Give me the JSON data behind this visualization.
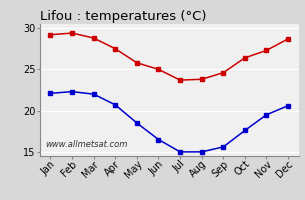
{
  "title": "Lifou : temperatures (°C)",
  "months": [
    "Jan",
    "Feb",
    "Mar",
    "Apr",
    "May",
    "Jun",
    "Jul",
    "Aug",
    "Sep",
    "Oct",
    "Nov",
    "Dec"
  ],
  "max_temps": [
    29.2,
    29.4,
    28.8,
    27.5,
    25.8,
    25.0,
    23.7,
    23.8,
    24.6,
    26.4,
    27.3,
    28.7
  ],
  "min_temps": [
    22.1,
    22.3,
    22.0,
    20.7,
    18.5,
    16.5,
    15.0,
    15.0,
    15.6,
    17.6,
    19.5,
    20.6
  ],
  "max_color": "#cc0000",
  "min_color": "#0000cc",
  "ylim": [
    14.5,
    30.5
  ],
  "yticks": [
    15,
    20,
    25,
    30
  ],
  "bg_color": "#d8d8d8",
  "plot_bg": "#f0f0f0",
  "grid_color": "#ffffff",
  "watermark": "www.allmetsat.com",
  "title_fontsize": 9.5,
  "tick_fontsize": 7,
  "marker": "s",
  "markersize": 2.8,
  "linewidth": 1.1
}
